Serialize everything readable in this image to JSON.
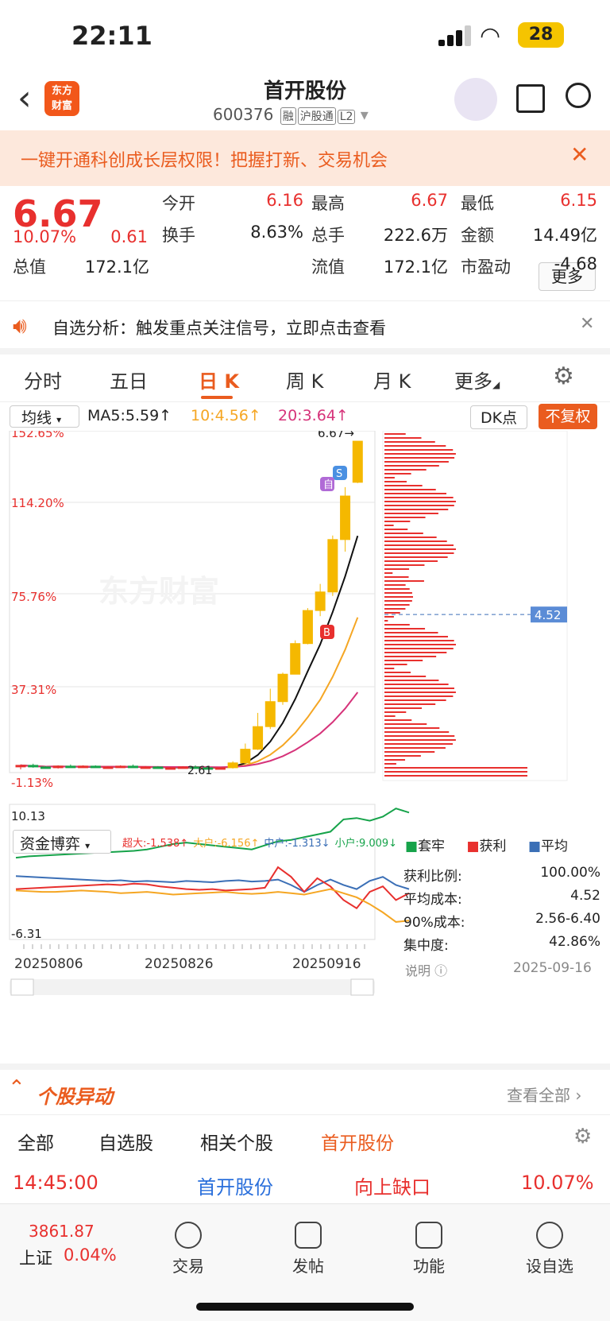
{
  "status": {
    "time": "22:11",
    "battery": "28"
  },
  "header": {
    "logo": "东方\n财富",
    "title": "首开股份",
    "code": "600376",
    "tags": [
      "融",
      "沪股通",
      "L2"
    ]
  },
  "promo": {
    "text": "一键开通科创成长层权限！把握打新、交易机会",
    "close": "✕"
  },
  "quote": {
    "price": "6.67",
    "pct": "10.07%",
    "chg": "0.61",
    "fields": [
      {
        "label": "今开",
        "value": "6.16",
        "color": "#e8302e"
      },
      {
        "label": "最高",
        "value": "6.67",
        "color": "#e8302e"
      },
      {
        "label": "最低",
        "value": "6.15",
        "color": "#e8302e"
      },
      {
        "label": "换手",
        "value": "8.63%",
        "color": "#222"
      },
      {
        "label": "总手",
        "value": "222.6万",
        "color": "#222"
      },
      {
        "label": "金额",
        "value": "14.49亿",
        "color": "#222"
      },
      {
        "label": "总值",
        "value": "172.1亿",
        "color": "#222"
      },
      {
        "label": "流值",
        "value": "172.1亿",
        "color": "#222"
      },
      {
        "label": "市盈动",
        "value": "-4.68",
        "color": "#222"
      }
    ],
    "more": "更多"
  },
  "notice": {
    "text": "自选分析：触发重点关注信号，立即点击查看",
    "close": "✕"
  },
  "tabs": [
    "分时",
    "五日",
    "日 K",
    "周 K",
    "月 K",
    "更多"
  ],
  "ma": {
    "type": "均线",
    "ma5": "MA5:5.59↑",
    "ma10": "10:4.56↑",
    "ma20": "20:3.64↑",
    "dk": "DK点",
    "fq": "不复权"
  },
  "chart_data": {
    "type": "candlestick",
    "y_labels": [
      "152.65%",
      "114.20%",
      "75.76%",
      "37.31%",
      "-1.13%"
    ],
    "last_label": "6.67→",
    "low_label": "2.61",
    "cost_line": "4.52",
    "watermark": "东方财富",
    "markers": [
      "S",
      "自",
      "B"
    ],
    "candles": [
      [
        2.64,
        2.66,
        2.6,
        2.65
      ],
      [
        2.65,
        2.67,
        2.62,
        2.63
      ],
      [
        2.63,
        2.64,
        2.61,
        2.62
      ],
      [
        2.62,
        2.65,
        2.61,
        2.64
      ],
      [
        2.64,
        2.66,
        2.62,
        2.63
      ],
      [
        2.63,
        2.65,
        2.62,
        2.64
      ],
      [
        2.64,
        2.65,
        2.62,
        2.62
      ],
      [
        2.62,
        2.64,
        2.61,
        2.63
      ],
      [
        2.63,
        2.65,
        2.62,
        2.64
      ],
      [
        2.64,
        2.66,
        2.62,
        2.62
      ],
      [
        2.62,
        2.64,
        2.61,
        2.63
      ],
      [
        2.63,
        2.64,
        2.61,
        2.61
      ],
      [
        2.61,
        2.63,
        2.61,
        2.62
      ],
      [
        2.62,
        2.64,
        2.61,
        2.63
      ],
      [
        2.63,
        2.65,
        2.62,
        2.62
      ],
      [
        2.62,
        2.63,
        2.61,
        2.61
      ],
      [
        2.61,
        2.62,
        2.61,
        2.62
      ],
      [
        2.62,
        2.7,
        2.61,
        2.68
      ],
      [
        2.68,
        2.92,
        2.66,
        2.85
      ],
      [
        2.85,
        3.3,
        2.84,
        3.13
      ],
      [
        3.13,
        3.6,
        3.1,
        3.44
      ],
      [
        3.44,
        3.8,
        3.4,
        3.78
      ],
      [
        3.78,
        4.2,
        3.78,
        4.16
      ],
      [
        4.16,
        4.6,
        4.15,
        4.57
      ],
      [
        4.57,
        4.9,
        4.5,
        4.8
      ],
      [
        4.8,
        5.5,
        4.75,
        5.45
      ],
      [
        5.45,
        6.1,
        5.3,
        5.99
      ],
      [
        6.16,
        6.67,
        6.15,
        6.67
      ]
    ]
  },
  "fund": {
    "label": "资金博弈",
    "legend": [
      {
        "t": "超大:-1.538↑",
        "c": "#e8302e"
      },
      {
        "t": "大户:-6.156↑",
        "c": "#f5a623"
      },
      {
        "t": "中户:-1.313↓",
        "c": "#3b6fb6"
      },
      {
        "t": "小户:9.009↓",
        "c": "#16a34a"
      }
    ],
    "ymax": "10.13",
    "ymin": "-6.31",
    "dates": [
      "20250806",
      "20250826",
      "20250916"
    ]
  },
  "chip": {
    "legend": [
      "套牢",
      "获利",
      "平均"
    ],
    "rows": [
      {
        "k": "获利比例:",
        "v": "100.00%"
      },
      {
        "k": "平均成本:",
        "v": "4.52"
      },
      {
        "k": "90%成本:",
        "v": "2.56-6.40"
      },
      {
        "k": "集中度:",
        "v": "42.86%"
      }
    ],
    "note": "说明",
    "date": "2025-09-16"
  },
  "section": {
    "title": "个股异动",
    "more": "查看全部"
  },
  "filters": [
    "全部",
    "自选股",
    "相关个股",
    "首开股份"
  ],
  "event": {
    "time": "14:45:00",
    "name": "首开股份",
    "type": "向上缺口",
    "pct": "10.07%"
  },
  "bottom": {
    "index": "3861.87",
    "idxname": "上证",
    "idxpct": "0.04%",
    "items": [
      "交易",
      "发帖",
      "功能",
      "设自选"
    ]
  }
}
